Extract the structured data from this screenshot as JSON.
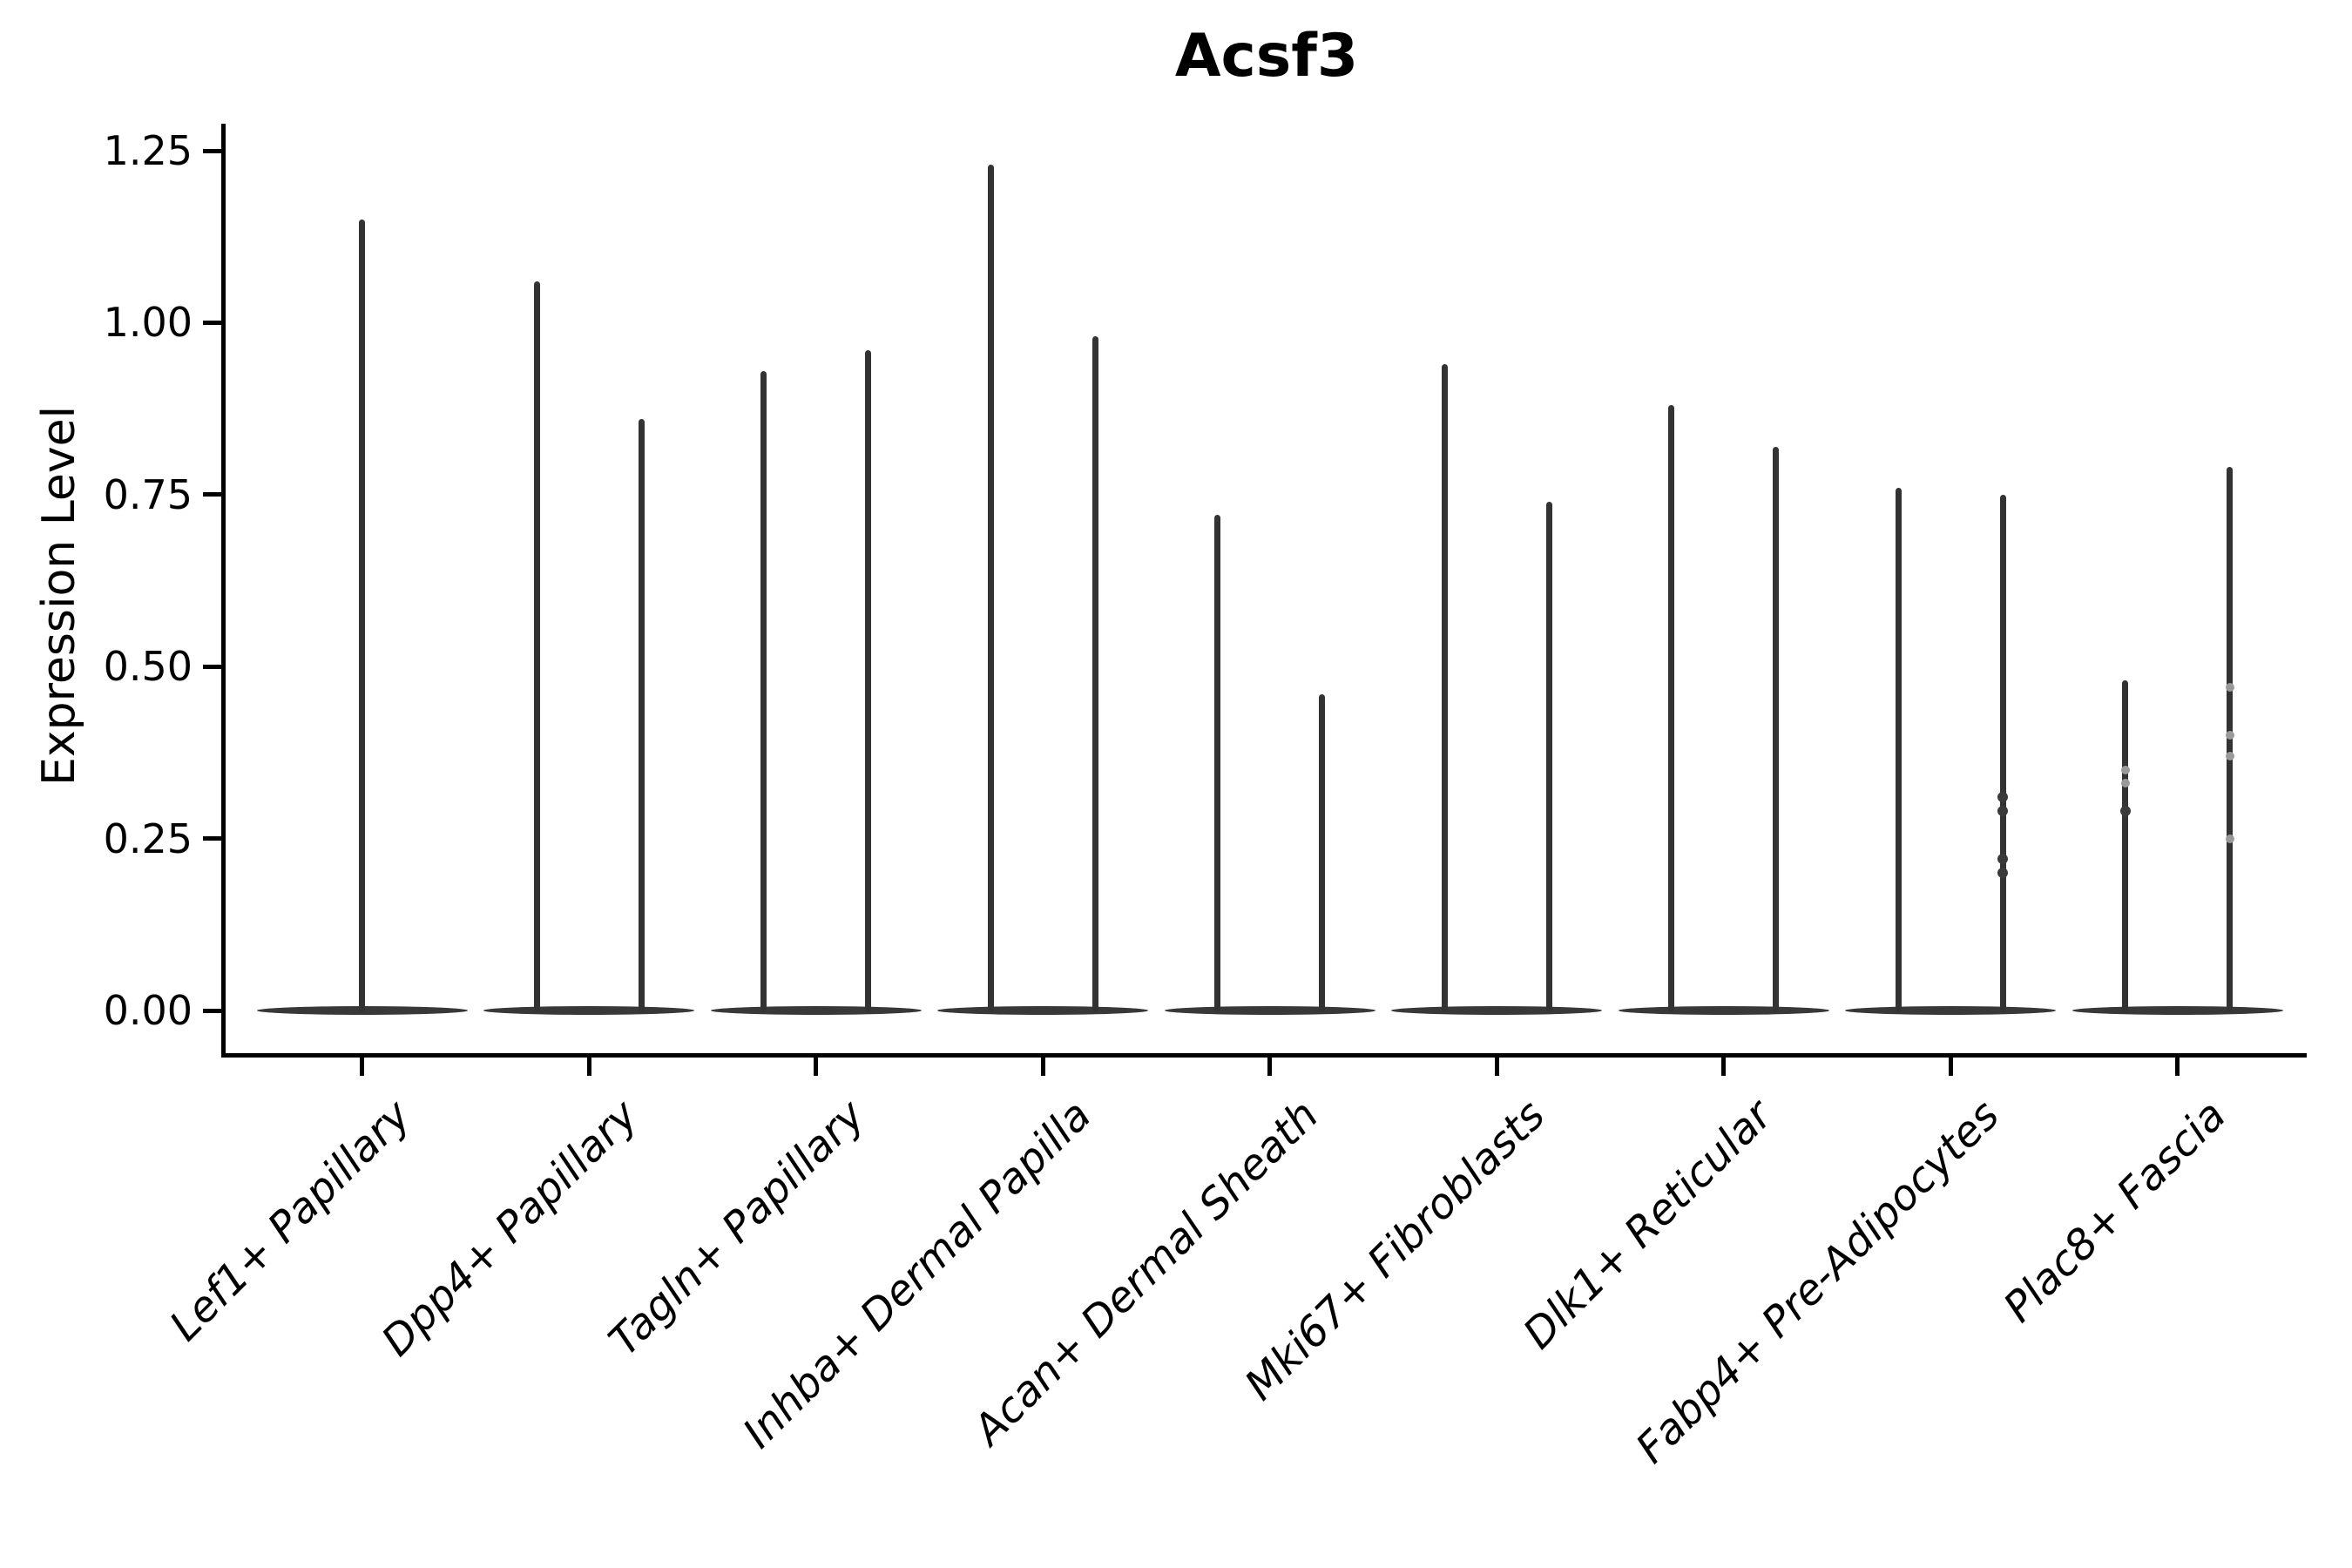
{
  "figure": {
    "title": "Acsf3",
    "ylabel": "Expression Level",
    "colors": {
      "background": "#ffffff",
      "violin": "#333333",
      "violin_base": "#383838",
      "faint_dot": "#9a9a9a",
      "axis": "#000000",
      "text": "#000000"
    }
  },
  "chart_data": {
    "type": "violin",
    "title": "Acsf3",
    "xlabel": "",
    "ylabel": "Expression Level",
    "ylim": [
      -0.06,
      1.29
    ],
    "yticks": [
      0.0,
      0.25,
      0.5,
      0.75,
      1.0,
      1.25
    ],
    "ytick_labels": [
      "0.00",
      "0.25",
      "0.50",
      "0.75",
      "1.00",
      "1.25"
    ],
    "grid": false,
    "legend": null,
    "categories": [
      "Lef1+ Papillary",
      "Dpp4+ Papillary",
      "Tagln+ Papillary",
      "Inhba+ Dermal Papilla",
      "Acan+ Dermal Sheath",
      "Mki67+ Fibroblasts",
      "Dlk1+ Reticular",
      "Fabp4+ Pre-Adipocytes",
      "Plac8+ Fascia"
    ],
    "description": "Needle-shaped violins: dense flat base at expression 0 with a thin tail up to the max value. Categories 2-9 each show a pair of violins straddling the tick; category 1 shows a single centered violin.",
    "groups": [
      {
        "label": "Lef1+ Papillary",
        "violins": [
          {
            "max": 1.15,
            "dots": [],
            "faint_dots": []
          }
        ]
      },
      {
        "label": "Dpp4+ Papillary",
        "violins": [
          {
            "max": 1.06,
            "dots": [],
            "faint_dots": []
          },
          {
            "max": 0.86,
            "dots": [],
            "faint_dots": []
          }
        ]
      },
      {
        "label": "Tagln+ Papillary",
        "violins": [
          {
            "max": 0.93,
            "dots": [],
            "faint_dots": []
          },
          {
            "max": 0.96,
            "dots": [],
            "faint_dots": []
          }
        ]
      },
      {
        "label": "Inhba+ Dermal Papilla",
        "violins": [
          {
            "max": 1.23,
            "dots": [],
            "faint_dots": []
          },
          {
            "max": 0.98,
            "dots": [],
            "faint_dots": []
          }
        ]
      },
      {
        "label": "Acan+ Dermal Sheath",
        "violins": [
          {
            "max": 0.72,
            "dots": [],
            "faint_dots": []
          },
          {
            "max": 0.46,
            "dots": [],
            "faint_dots": []
          }
        ]
      },
      {
        "label": "Mki67+ Fibroblasts",
        "violins": [
          {
            "max": 0.94,
            "dots": [],
            "faint_dots": []
          },
          {
            "max": 0.74,
            "dots": [],
            "faint_dots": []
          }
        ]
      },
      {
        "label": "Dlk1+ Reticular",
        "violins": [
          {
            "max": 0.88,
            "dots": [],
            "faint_dots": []
          },
          {
            "max": 0.82,
            "dots": [],
            "faint_dots": []
          }
        ]
      },
      {
        "label": "Fabp4+ Pre-Adipocytes",
        "violins": [
          {
            "max": 0.76,
            "dots": [],
            "faint_dots": []
          },
          {
            "max": 0.75,
            "dots": [
              0.31,
              0.29,
              0.22,
              0.2
            ],
            "faint_dots": []
          }
        ]
      },
      {
        "label": "Plac8+ Fascia",
        "violins": [
          {
            "max": 0.48,
            "dots": [
              0.29
            ],
            "faint_dots": [
              0.35,
              0.33
            ]
          },
          {
            "max": 0.79,
            "dots": [],
            "faint_dots": [
              0.47,
              0.4,
              0.37,
              0.25
            ]
          }
        ]
      }
    ]
  }
}
